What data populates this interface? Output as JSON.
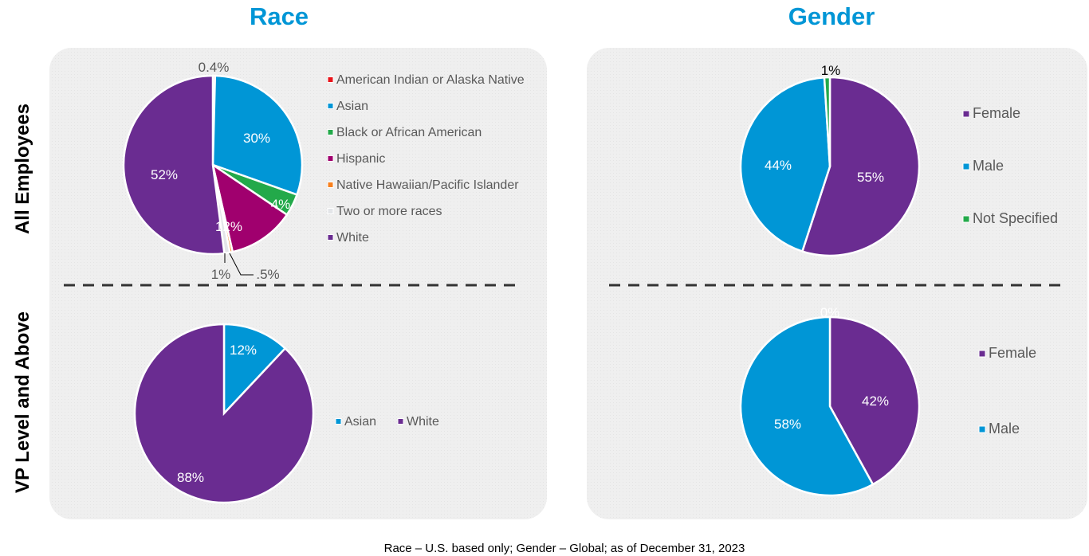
{
  "columns": {
    "race": "Race",
    "gender": "Gender"
  },
  "rows": {
    "all": "All Employees",
    "vp": "VP Level and Above"
  },
  "footnote": "Race – U.S. based only; Gender – Global; as of December 31, 2023",
  "colors": {
    "american_indian": "#E8141B",
    "asian": "#0096D6",
    "black": "#23A94A",
    "hispanic": "#A0006E",
    "native_hawaiian": "#F7801E",
    "two_or_more": "#E3E5E8",
    "white": "#6A2C91",
    "female": "#6A2C91",
    "male": "#0096D6",
    "not_specified": "#23A94A",
    "title": "#0096D6",
    "panel": "#EFEFEF"
  },
  "chart_data": [
    {
      "type": "pie",
      "title": "Race — All Employees",
      "categories": [
        "American Indian or Alaska Native",
        "Asian",
        "Black or African American",
        "Hispanic",
        "Native Hawaiian/Pacific Islander",
        "Two or more races",
        "White"
      ],
      "values": [
        0.4,
        30,
        4,
        12,
        0.5,
        1,
        52
      ],
      "labels": [
        "0.4%",
        "30%",
        "4%",
        "12%",
        ".5%",
        "1%",
        "52%"
      ],
      "colors": [
        "#E8141B",
        "#0096D6",
        "#23A94A",
        "#A0006E",
        "#F7801E",
        "#E3E5E8",
        "#6A2C91"
      ],
      "legend": "right"
    },
    {
      "type": "pie",
      "title": "Gender — All Employees",
      "categories": [
        "Female",
        "Male",
        "Not Specified"
      ],
      "values": [
        55,
        44,
        1
      ],
      "labels": [
        "55%",
        "44%",
        "1%"
      ],
      "colors": [
        "#6A2C91",
        "#0096D6",
        "#23A94A"
      ],
      "legend": "right"
    },
    {
      "type": "pie",
      "title": "Race — VP Level and Above",
      "categories": [
        "Asian",
        "White"
      ],
      "values": [
        12,
        88
      ],
      "labels": [
        "12%",
        "88%"
      ],
      "colors": [
        "#0096D6",
        "#6A2C91"
      ],
      "legend": "right"
    },
    {
      "type": "pie",
      "title": "Gender — VP Level and Above",
      "categories": [
        "Female",
        "Male",
        "Not Specified"
      ],
      "values": [
        42,
        58,
        0
      ],
      "labels": [
        "42%",
        "58%",
        "0%"
      ],
      "colors": [
        "#6A2C91",
        "#0096D6",
        "#23A94A"
      ],
      "legend": "right"
    }
  ]
}
